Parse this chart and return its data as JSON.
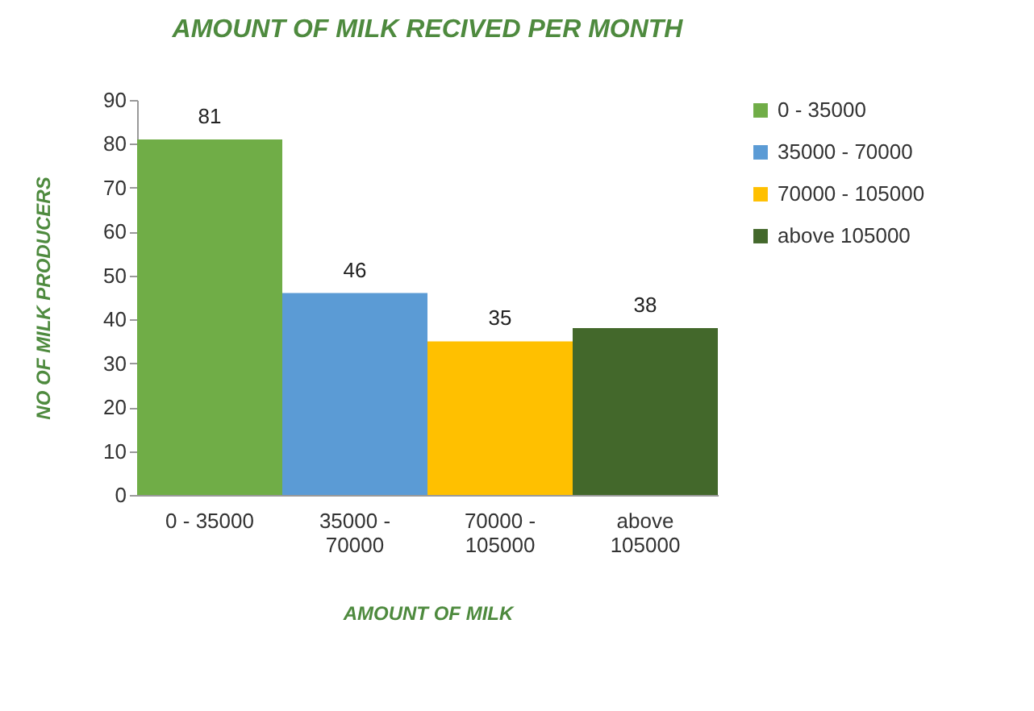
{
  "chart_data": {
    "type": "bar",
    "title": "AMOUNT OF MILK RECIVED  PER MONTH",
    "xlabel": "AMOUNT OF MILK",
    "ylabel": "NO OF  MILK PRODUCERS",
    "categories": [
      "0 - 35000",
      "35000 - 70000",
      "70000 - 105000",
      "above 105000"
    ],
    "series": [
      {
        "name": "0 - 35000",
        "color": "#70ad47",
        "values": [
          81,
          null,
          null,
          null
        ]
      },
      {
        "name": "35000 - 70000",
        "color": "#5b9bd5",
        "values": [
          null,
          46,
          null,
          null
        ]
      },
      {
        "name": "70000 - 105000",
        "color": "#ffc000",
        "values": [
          null,
          null,
          35,
          null
        ]
      },
      {
        "name": "above 105000",
        "color": "#43682b",
        "values": [
          null,
          null,
          null,
          38
        ]
      }
    ],
    "ylim": [
      0,
      90
    ],
    "yticks": [
      0,
      10,
      20,
      30,
      40,
      50,
      60,
      70,
      80,
      90
    ],
    "data_labels": true,
    "grid": false,
    "legend": "right"
  }
}
